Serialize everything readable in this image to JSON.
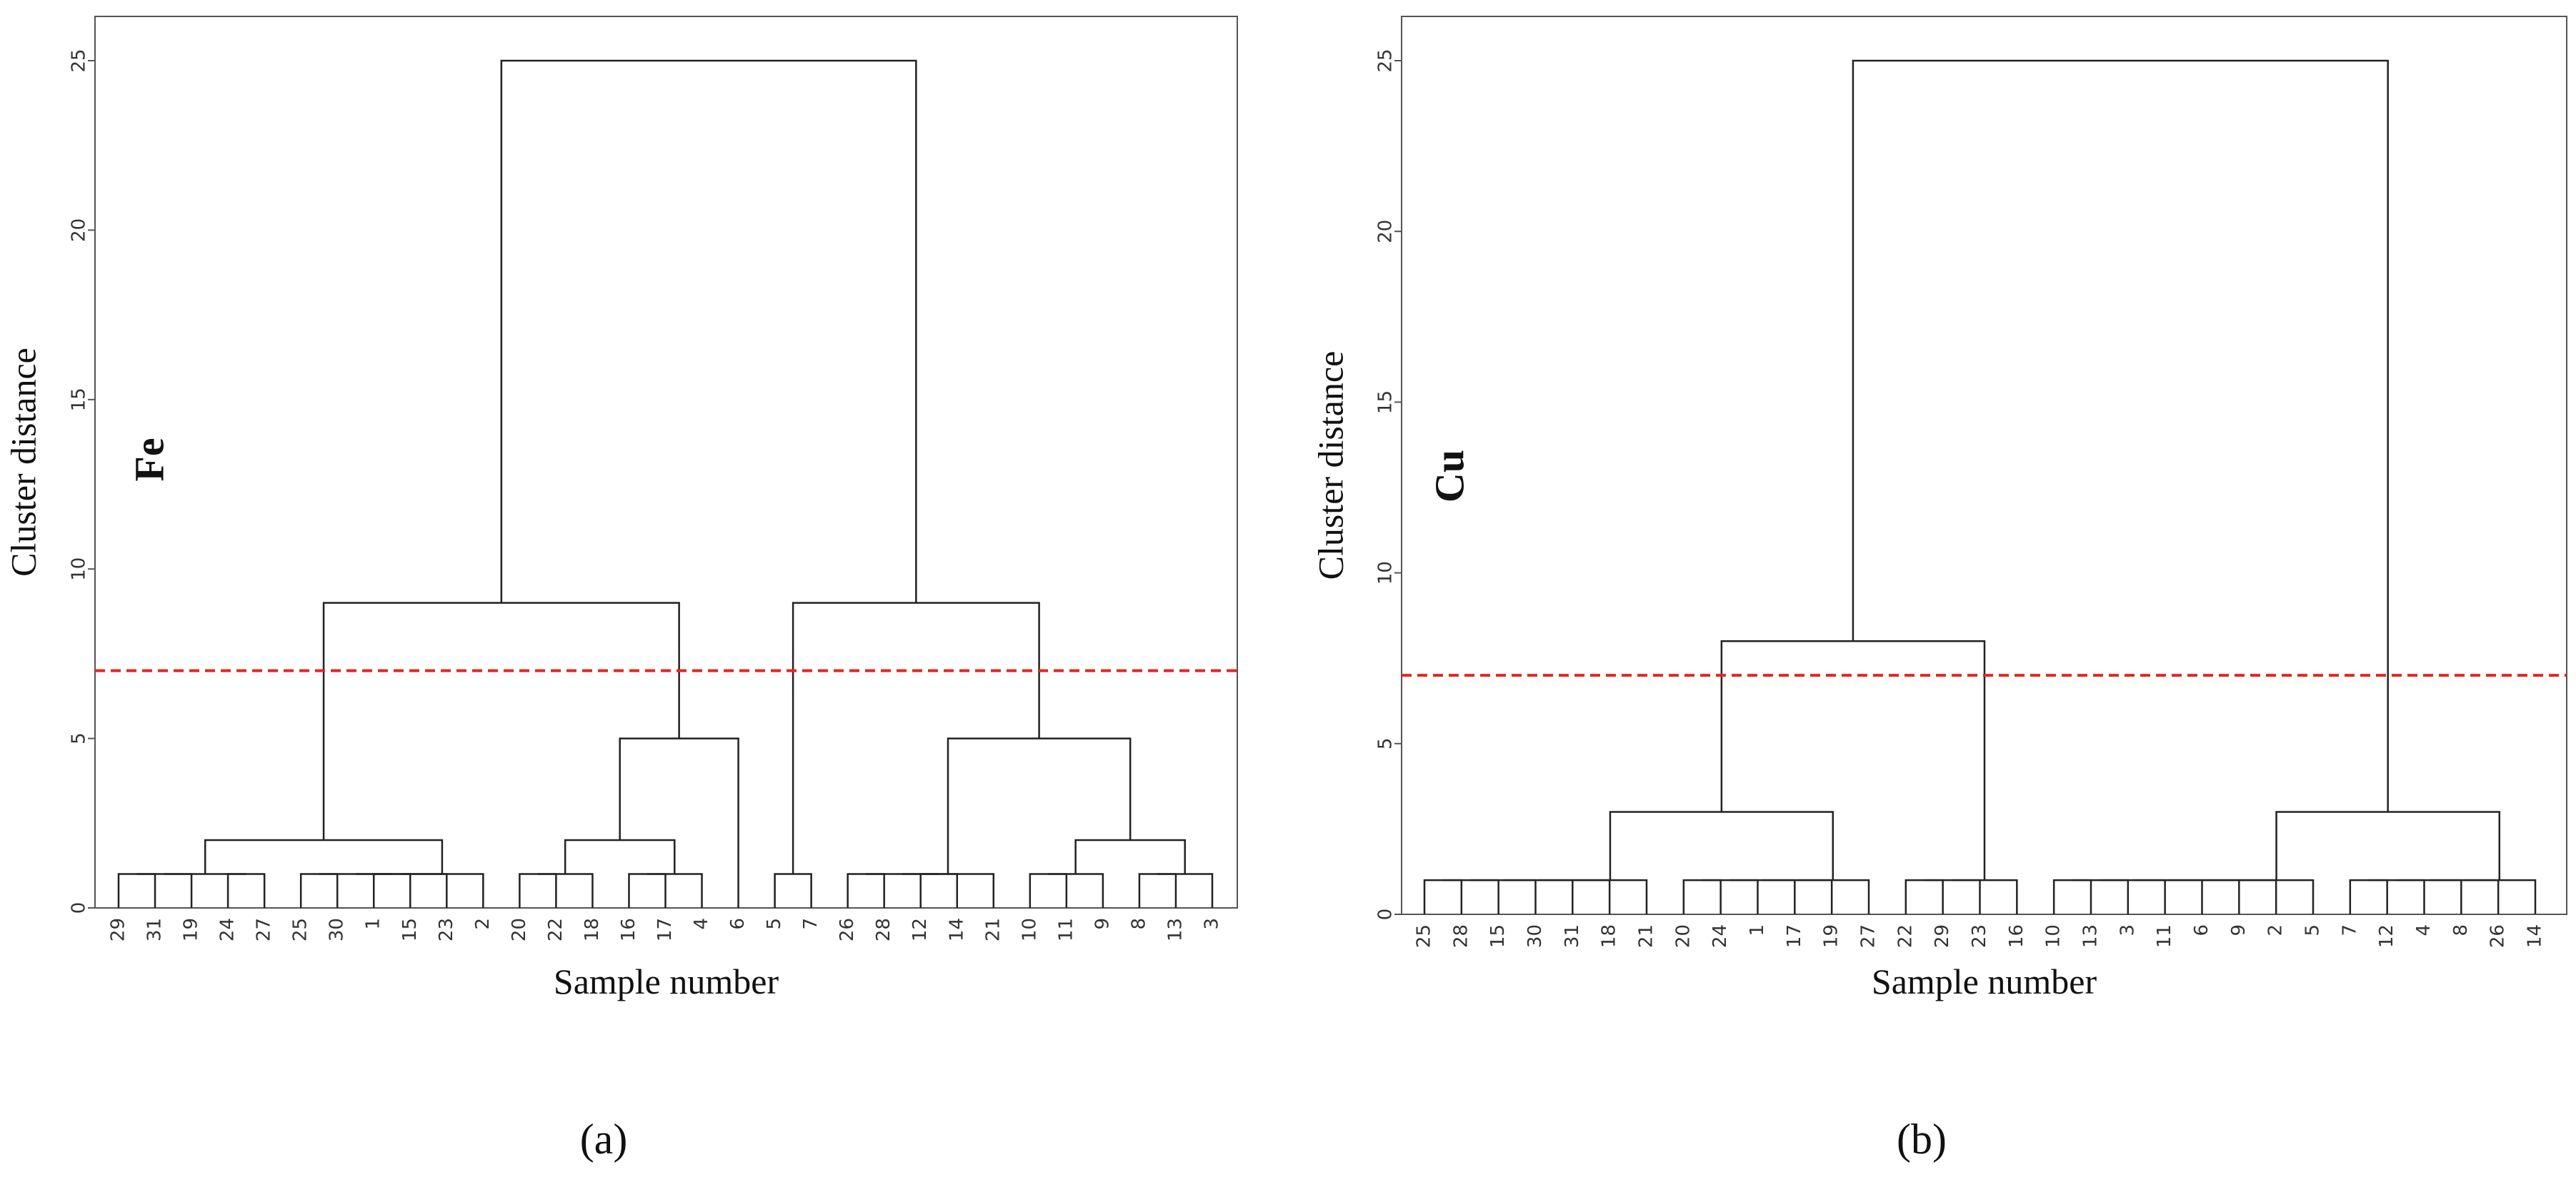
{
  "chart_data": [
    {
      "type": "dendrogram",
      "panel_label": "(a)",
      "annotation": "Fe",
      "ylabel": "Cluster distance",
      "xlabel": "Sample number",
      "ylim": [
        0,
        25
      ],
      "yticks": [
        0,
        5,
        10,
        15,
        20,
        25
      ],
      "threshold": 7,
      "threshold_color": "#e8241e",
      "color": "#222222",
      "leaves": [
        "29",
        "31",
        "19",
        "24",
        "27",
        "25",
        "30",
        "1",
        "15",
        "23",
        "2",
        "20",
        "22",
        "18",
        "16",
        "17",
        "4",
        "6",
        "5",
        "7",
        "26",
        "28",
        "12",
        "14",
        "21",
        "10",
        "11",
        "9",
        "8",
        "13",
        "3"
      ],
      "merges": [
        [
          0,
          1,
          1
        ],
        [
          31,
          2,
          1
        ],
        [
          3,
          4,
          1
        ],
        [
          32,
          33,
          1
        ],
        [
          5,
          6,
          1
        ],
        [
          7,
          8,
          1
        ],
        [
          35,
          36,
          1
        ],
        [
          37,
          9,
          1
        ],
        [
          38,
          10,
          1
        ],
        [
          34,
          39,
          2
        ],
        [
          11,
          12,
          1
        ],
        [
          41,
          13,
          1
        ],
        [
          14,
          15,
          1
        ],
        [
          43,
          16,
          1
        ],
        [
          42,
          44,
          2
        ],
        [
          45,
          17,
          5
        ],
        [
          40,
          46,
          9
        ],
        [
          18,
          19,
          1
        ],
        [
          20,
          21,
          1
        ],
        [
          22,
          23,
          1
        ],
        [
          49,
          50,
          1
        ],
        [
          51,
          24,
          1
        ],
        [
          25,
          26,
          1
        ],
        [
          53,
          27,
          1
        ],
        [
          28,
          29,
          1
        ],
        [
          55,
          30,
          1
        ],
        [
          54,
          56,
          2
        ],
        [
          52,
          57,
          5
        ],
        [
          48,
          58,
          9
        ],
        [
          47,
          59,
          25
        ]
      ]
    },
    {
      "type": "dendrogram",
      "panel_label": "(b)",
      "annotation": "Cu",
      "ylabel": "Cluster distance",
      "xlabel": "Sample number",
      "ylim": [
        0,
        25
      ],
      "yticks": [
        0,
        5,
        10,
        15,
        20,
        25
      ],
      "threshold": 7,
      "threshold_color": "#e8241e",
      "color": "#222222",
      "leaves": [
        "25",
        "28",
        "15",
        "30",
        "31",
        "18",
        "21",
        "20",
        "24",
        "1",
        "17",
        "19",
        "27",
        "22",
        "29",
        "23",
        "16",
        "10",
        "13",
        "3",
        "11",
        "6",
        "9",
        "2",
        "5",
        "7",
        "12",
        "4",
        "8",
        "26",
        "14"
      ],
      "merges": [
        [
          0,
          1,
          1
        ],
        [
          31,
          2,
          1
        ],
        [
          32,
          3,
          1
        ],
        [
          33,
          4,
          1
        ],
        [
          34,
          5,
          1
        ],
        [
          35,
          6,
          1
        ],
        [
          7,
          8,
          1
        ],
        [
          37,
          9,
          1
        ],
        [
          38,
          10,
          1
        ],
        [
          39,
          11,
          1
        ],
        [
          40,
          12,
          1
        ],
        [
          36,
          41,
          3
        ],
        [
          13,
          14,
          1
        ],
        [
          43,
          15,
          1
        ],
        [
          44,
          16,
          1
        ],
        [
          42,
          45,
          8
        ],
        [
          17,
          18,
          1
        ],
        [
          47,
          19,
          1
        ],
        [
          48,
          20,
          1
        ],
        [
          49,
          21,
          1
        ],
        [
          50,
          22,
          1
        ],
        [
          51,
          23,
          1
        ],
        [
          52,
          24,
          1
        ],
        [
          25,
          26,
          1
        ],
        [
          54,
          27,
          1
        ],
        [
          55,
          28,
          1
        ],
        [
          56,
          29,
          1
        ],
        [
          57,
          30,
          1
        ],
        [
          53,
          58,
          3
        ],
        [
          46,
          59,
          25
        ]
      ]
    }
  ]
}
